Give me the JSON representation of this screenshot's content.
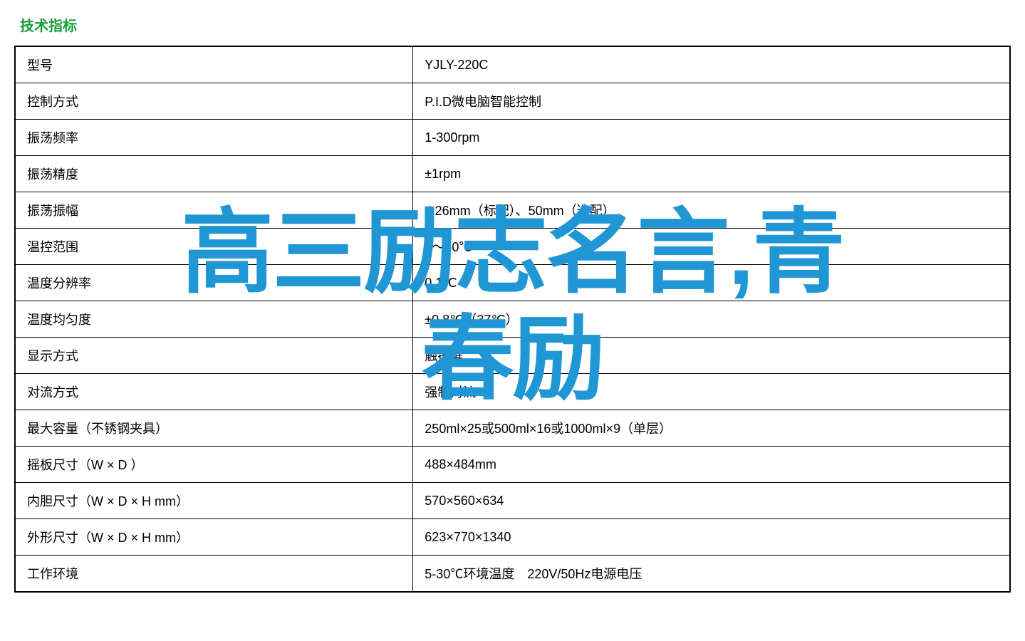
{
  "section_title": "技术指标",
  "table": {
    "rows": [
      {
        "label": "型号",
        "value": "YJLY-220C"
      },
      {
        "label": "控制方式",
        "value": "P.I.D微电脑智能控制"
      },
      {
        "label": "振荡频率",
        "value": "1-300rpm"
      },
      {
        "label": "振荡精度",
        "value": "±1rpm"
      },
      {
        "label": "振荡振幅",
        "value": "Φ26mm（标配）、50mm（选配）"
      },
      {
        "label": "温控范围",
        "value": "4～60℃"
      },
      {
        "label": "温度分辨率",
        "value": "0.1℃"
      },
      {
        "label": "温度均匀度",
        "value": "±0.8℃（37℃）"
      },
      {
        "label": "显示方式",
        "value": "触摸屏"
      },
      {
        "label": "对流方式",
        "value": "强制对流"
      },
      {
        "label": "最大容量（不锈钢夹具）",
        "value": "250ml×25或500ml×16或1000ml×9（单层）"
      },
      {
        "label": "摇板尺寸（W × D ）",
        "value": "488×484mm"
      },
      {
        "label": "内胆尺寸（W × D × H mm）",
        "value": "570×560×634"
      },
      {
        "label": "外形尺寸（W × D × H mm）",
        "value": "623×770×1340"
      },
      {
        "label": "工作环境",
        "value": "5-30℃环境温度　220V/50Hz电源电压"
      }
    ]
  },
  "overlay": {
    "line1": "高三励志名言,青",
    "line2": "春励"
  },
  "colors": {
    "title_color": "#1a9e3c",
    "border_color": "#000000",
    "text_color": "#000000",
    "overlay_color": "#2196d4",
    "background_color": "#ffffff"
  },
  "typography": {
    "title_fontsize": 20,
    "cell_fontsize": 18,
    "overlay_fontsize": 130
  }
}
